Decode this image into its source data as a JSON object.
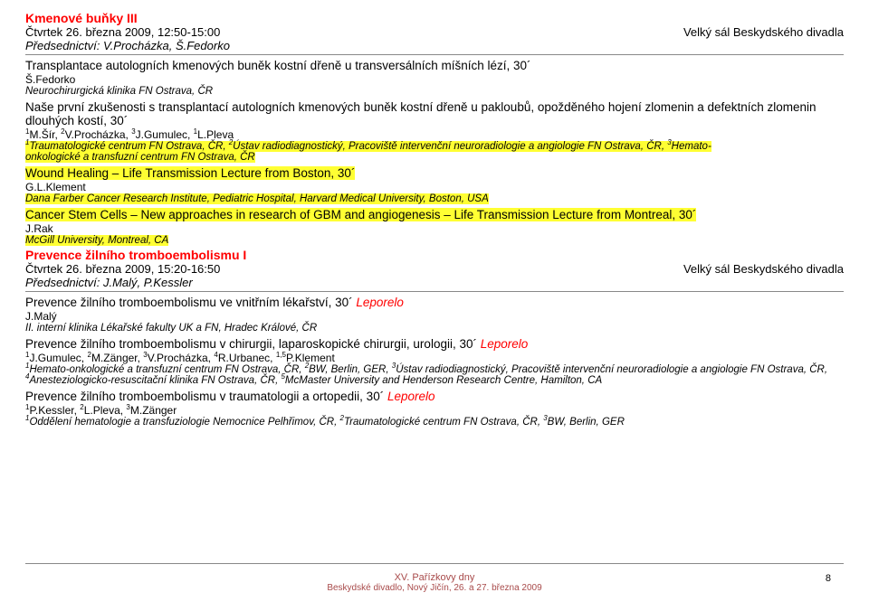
{
  "session1": {
    "title": "Kmenové buňky III",
    "dateLine": "Čtvrtek 26. března 2009, 12:50-15:00",
    "venue": "Velký sál Beskydského divadla",
    "chair": "Předsednictví: V.Procházka, Š.Fedorko"
  },
  "talk1": {
    "title": "Transplantace autologních kmenových buněk kostní dřeně u transversálních míšních lézí, 30´",
    "authors": "Š.Fedorko",
    "affil": "Neurochirurgická klinika FN Ostrava, ČR"
  },
  "talk2": {
    "title": "Naše první zkušenosti s transplantací autologních kmenových buněk kostní dřeně u pakloubů, opožděného hojení zlomenin a defektních zlomenin dlouhých kostí, 30´"
  },
  "talk3": {
    "title": "Wound Healing – Life Transmission Lecture from Boston, 30´",
    "authors": "G.L.Klement",
    "affil": "Dana Farber Cancer Research Institute, Pediatric Hospital, Harvard Medical University, Boston, USA"
  },
  "talk4": {
    "title": "Cancer Stem Cells – New approaches in research of GBM and angiogenesis – Life Transmission Lecture from Montreal, 30´",
    "authors": "J.Rak",
    "affil": "McGill University, Montreal, CA"
  },
  "session2": {
    "title": "Prevence žilního tromboembolismu I",
    "dateLine": "Čtvrtek 26. března 2009, 15:20-16:50",
    "venue": "Velký sál Beskydského divadla",
    "chair": "Předsednictví: J.Malý, P.Kessler"
  },
  "talk5": {
    "titlePrefix": "Prevence žilního tromboembolismu ve vnitřním lékařství, 30´  ",
    "lep": "Leporelo",
    "authors": "J.Malý",
    "affil": "II. interní klinika Lékařské fakulty UK a FN, Hradec Králové, ČR"
  },
  "talk6": {
    "titlePrefix": "Prevence žilního tromboembolismu v chirurgii, laparoskopické chirurgii, urologii, 30´  ",
    "lep": "Leporelo"
  },
  "talk7": {
    "titlePrefix": "Prevence žilního tromboembolismu v traumatologii a ortopedii, 30´  ",
    "lep": "Leporelo"
  },
  "footer": {
    "line1": "XV. Pařízkovy dny",
    "line2": "Beskydské divadlo, Nový Jičín, 26. a 27. března 2009",
    "page": "8"
  }
}
